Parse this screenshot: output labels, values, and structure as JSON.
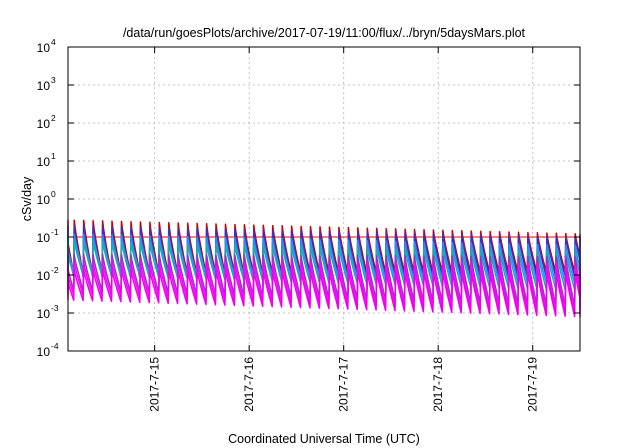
{
  "chart_data": {
    "type": "line",
    "title": "/data/run/goesPlots/archive/2017-07-19/11:00/flux/../bryn/5daysMars.plot",
    "xlabel": "Coordinated Universal Time (UTC)",
    "ylabel": "cSv/day",
    "yscale": "log",
    "ylim": [
      0.0001,
      10000
    ],
    "xlim": [
      "2017-07-14T02:00",
      "2017-07-19T12:00"
    ],
    "y_ticks": [
      {
        "base": "10",
        "exp": "-4",
        "value": 0.0001
      },
      {
        "base": "10",
        "exp": "-3",
        "value": 0.001
      },
      {
        "base": "10",
        "exp": "-2",
        "value": 0.01
      },
      {
        "base": "10",
        "exp": "-1",
        "value": 0.1
      },
      {
        "base": "10",
        "exp": "0",
        "value": 1
      },
      {
        "base": "10",
        "exp": "1",
        "value": 10
      },
      {
        "base": "10",
        "exp": "2",
        "value": 100
      },
      {
        "base": "10",
        "exp": "3",
        "value": 1000
      },
      {
        "base": "10",
        "exp": "4",
        "value": 10000
      }
    ],
    "x_ticks": [
      {
        "label": "2017-7-15",
        "value": "2017-07-15T00:00"
      },
      {
        "label": "2017-7-16",
        "value": "2017-07-16T00:00"
      },
      {
        "label": "2017-7-17",
        "value": "2017-07-17T00:00"
      },
      {
        "label": "2017-7-18",
        "value": "2017-07-18T00:00"
      },
      {
        "label": "2017-7-19",
        "value": "2017-07-19T00:00"
      }
    ],
    "grid": true,
    "legend": "none",
    "reference_lines": [
      {
        "value": 0.1,
        "color": "#ff0000"
      }
    ],
    "spike_period_hours": 2.4,
    "series": [
      {
        "color": "#cc0000",
        "peak_start": 0.28,
        "peak_end": 0.12,
        "trough_start": 0.011,
        "trough_end": 0.012
      },
      {
        "color": "#3333cc",
        "peak_start": 0.2,
        "peak_end": 0.1,
        "trough_start": 0.009,
        "trough_end": 0.009
      },
      {
        "color": "#1e90ff",
        "peak_start": 0.12,
        "peak_end": 0.06,
        "trough_start": 0.012,
        "trough_end": 0.006
      },
      {
        "color": "#22aaaa",
        "peak_start": 0.08,
        "peak_end": 0.04,
        "trough_start": 0.01,
        "trough_end": 0.004
      },
      {
        "color": "#9932cc",
        "peak_start": 0.035,
        "peak_end": 0.03,
        "trough_start": 0.004,
        "trough_end": 0.0015
      },
      {
        "color": "#ff00ff",
        "peak_start": 0.022,
        "peak_end": 0.02,
        "trough_start": 0.003,
        "trough_end": 0.001
      },
      {
        "color": "#ee00ee",
        "peak_start": 0.014,
        "peak_end": 0.012,
        "trough_start": 0.0022,
        "trough_end": 0.0008
      }
    ]
  }
}
